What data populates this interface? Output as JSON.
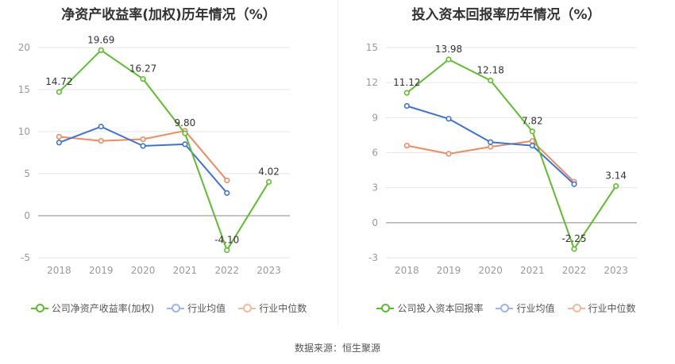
{
  "colors": {
    "company": "#5cbf2a",
    "industry_avg": "#3b73d9",
    "industry_median": "#f08a5d",
    "grid": "#e6e6e6",
    "axis_text": "#999999"
  },
  "source_text": "数据来源：恒生聚源",
  "chart_data": [
    {
      "type": "line",
      "title": "净资产收益率(加权)历年情况（%）",
      "x": [
        "2018",
        "2019",
        "2020",
        "2021",
        "2022",
        "2023"
      ],
      "yticks": [
        "20",
        "15",
        "10",
        "5",
        "0",
        "-5"
      ],
      "ylim": [
        -5,
        20
      ],
      "grid": true,
      "legend_position": "bottom",
      "series": [
        {
          "name": "公司净资产收益率(加权)",
          "values": [
            14.72,
            19.69,
            16.27,
            9.8,
            -4.1,
            4.02
          ],
          "labels": [
            "14.72",
            "19.69",
            "16.27",
            "9.80",
            "-4.10",
            "4.02"
          ],
          "color_key": "company"
        },
        {
          "name": "行业均值",
          "values": [
            8.7,
            10.6,
            8.3,
            8.5,
            2.7,
            null
          ],
          "color_key": "industry_avg"
        },
        {
          "name": "行业中位数",
          "values": [
            9.4,
            8.9,
            9.1,
            10.1,
            4.2,
            null
          ],
          "color_key": "industry_median"
        }
      ]
    },
    {
      "type": "line",
      "title": "投入资本回报率历年情况（%）",
      "x": [
        "2018",
        "2019",
        "2020",
        "2021",
        "2022",
        "2023"
      ],
      "yticks": [
        "15",
        "12",
        "9",
        "6",
        "3",
        "0",
        "-3"
      ],
      "ylim": [
        -3,
        15
      ],
      "grid": true,
      "legend_position": "bottom",
      "series": [
        {
          "name": "公司投入资本回报率",
          "values": [
            11.12,
            13.98,
            12.18,
            7.82,
            -2.25,
            3.14
          ],
          "labels": [
            "11.12",
            "13.98",
            "12.18",
            "7.82",
            "-2.25",
            "3.14"
          ],
          "color_key": "company"
        },
        {
          "name": "行业均值",
          "values": [
            10.0,
            8.9,
            6.9,
            6.6,
            3.3,
            null
          ],
          "color_key": "industry_avg"
        },
        {
          "name": "行业中位数",
          "values": [
            6.6,
            5.9,
            6.5,
            7.0,
            3.5,
            null
          ],
          "color_key": "industry_median"
        }
      ]
    }
  ]
}
